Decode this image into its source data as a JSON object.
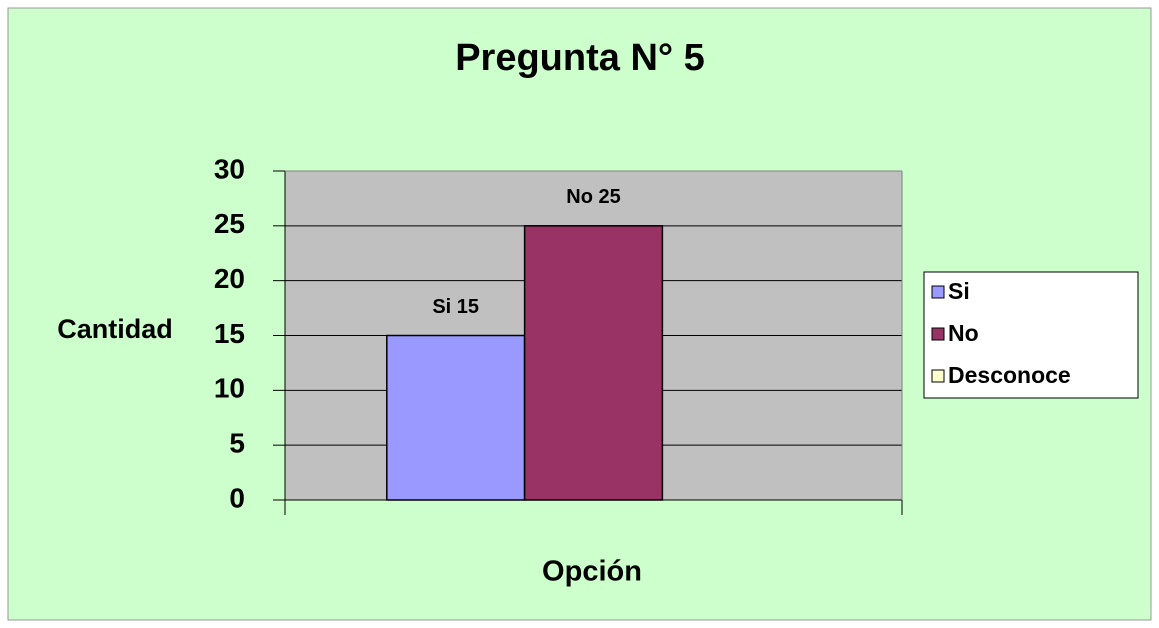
{
  "chart_data": {
    "type": "bar",
    "title": "Pregunta N° 5",
    "y_label": "Cantidad",
    "x_label": "Opción",
    "categories": [
      null
    ],
    "series": [
      {
        "name": "Si",
        "color": "#9999FF",
        "values": [
          15
        ],
        "value_labels": [
          "Si 15"
        ]
      },
      {
        "name": "No",
        "color": "#993366",
        "values": [
          25
        ],
        "value_labels": [
          "No 25"
        ]
      },
      {
        "name": "Desconoce",
        "color": "#FFFFCC",
        "values": [
          0
        ]
      }
    ],
    "ylim": [
      0,
      30
    ],
    "yticks": [
      0,
      5,
      10,
      15,
      20,
      25,
      30
    ],
    "grid": true,
    "legend": "right"
  }
}
